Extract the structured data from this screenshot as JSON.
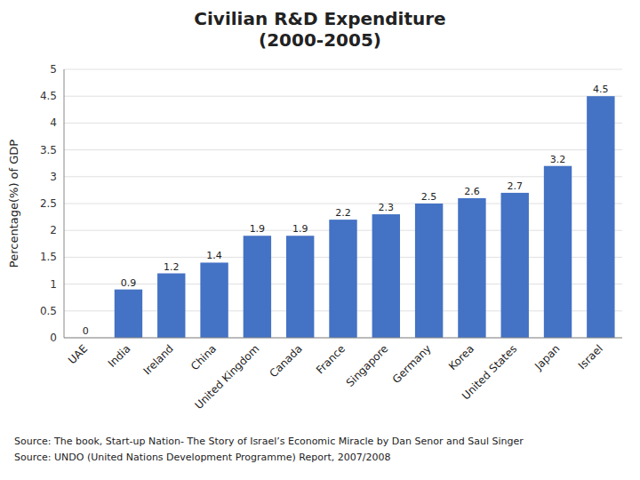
{
  "chart_data": {
    "type": "bar",
    "title": "Civilian R&D Expenditure\n(2000-2005)",
    "y_label": "Percentage(%) of GDP",
    "categories": [
      "UAE",
      "India",
      "Ireland",
      "China",
      "United Kingdom",
      "Canada",
      "France",
      "Singapore",
      "Germany",
      "Korea",
      "United States",
      "Japan",
      "Israel"
    ],
    "values": [
      0.0,
      0.9,
      1.2,
      1.4,
      1.9,
      1.9,
      2.2,
      2.3,
      2.5,
      2.6,
      2.7,
      3.2,
      4.5
    ],
    "color": "#4472C4",
    "ylim": [
      0,
      5
    ],
    "yticks": [
      0,
      0.5,
      1,
      1.5,
      2,
      2.5,
      3,
      3.5,
      4,
      4.5,
      5
    ],
    "grid": true,
    "data_labels": true,
    "annotations": [
      "Source: The book, Start-up Nation- The Story of Israel’s Economic Miracle by Dan Senor and Saul Singer",
      "Source: UNDO (United Nations Development Programme) Report, 2007/2008"
    ]
  }
}
